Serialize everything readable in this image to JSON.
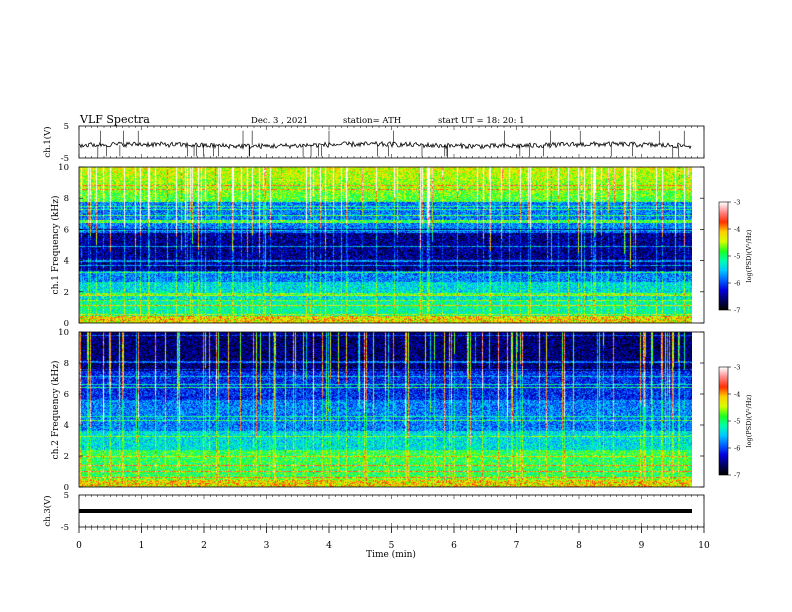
{
  "header": {
    "title": "VLF  Spectra",
    "date": "Dec. 3 , 2021",
    "station": "station= ATH",
    "start_ut": "start  UT  =   18: 20: 1"
  },
  "chart_data": [
    {
      "type": "line",
      "name": "ch1-waveform",
      "ylabel": "ch.1(V)",
      "xlim": [
        0,
        10
      ],
      "ylim": [
        -5,
        5
      ],
      "y_ticks": [
        "5",
        "-5"
      ],
      "trace_color": "#000000"
    },
    {
      "type": "heatmap",
      "name": "ch1-spectrogram",
      "ylabel": "ch.1 Frequency (kHz)",
      "ylim": [
        0,
        10
      ],
      "y_ticks": [
        "0",
        "2",
        "4",
        "6",
        "8",
        "10"
      ],
      "colorbar_label": "log(PSD)(V²/Hz)",
      "colorbar_range": [
        -7,
        -3
      ],
      "colorbar_ticks": [
        "-3",
        "-4",
        "-5",
        "-6",
        "-7"
      ]
    },
    {
      "type": "heatmap",
      "name": "ch2-spectrogram",
      "ylabel": "ch.2 Frequency (kHz)",
      "ylim": [
        0,
        10
      ],
      "y_ticks": [
        "0",
        "2",
        "4",
        "6",
        "8",
        "10"
      ],
      "colorbar_label": "log(PSD)(V²/Hz)",
      "colorbar_range": [
        -7,
        -3
      ],
      "colorbar_ticks": [
        "-3",
        "-4",
        "-5",
        "-6",
        "-7"
      ]
    },
    {
      "type": "line",
      "name": "ch3-waveform",
      "ylabel": "ch.3(V)",
      "xlim": [
        0,
        10
      ],
      "ylim": [
        -5,
        5
      ],
      "y_ticks": [
        "5",
        "-5"
      ],
      "trace_color": "#000000"
    }
  ],
  "x_axis": {
    "label": "Time  (min)",
    "range": [
      0,
      10
    ],
    "ticks": [
      "0",
      "1",
      "2",
      "3",
      "4",
      "5",
      "6",
      "7",
      "8",
      "9",
      "10"
    ],
    "data_end": 9.8
  },
  "colors": {
    "colormap": [
      "#000000",
      "#000066",
      "#0000dd",
      "#0060ff",
      "#00c8ff",
      "#00ffb0",
      "#20ff20",
      "#d8ff00",
      "#ffd000",
      "#ff3000",
      "#ff8888",
      "#ffffff"
    ]
  }
}
